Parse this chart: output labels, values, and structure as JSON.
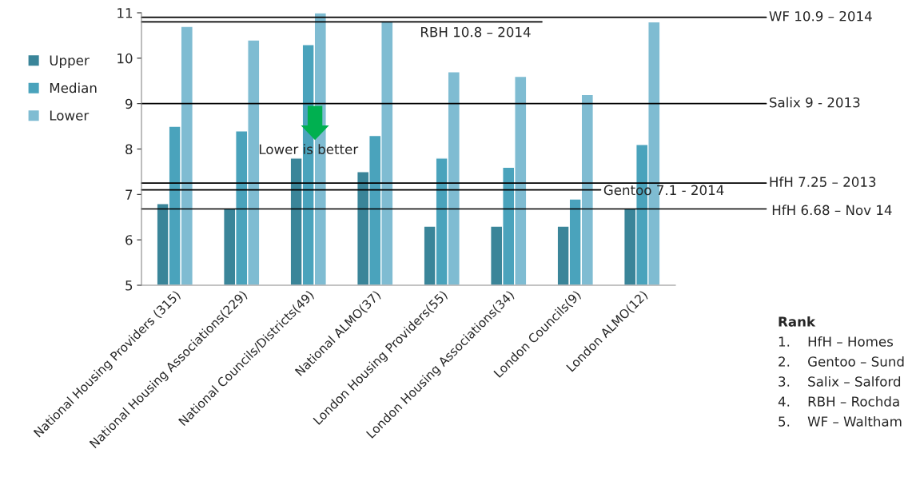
{
  "chart_data": {
    "type": "bar",
    "categories": [
      "National Housing Providers (315)",
      "National Housing Associations(229)",
      "National Councils/Districts(49)",
      "National ALMO(37)",
      "London Housing Providers(55)",
      "London Housing Associations(34)",
      "London Councils(9)",
      "London ALMO(12)"
    ],
    "series": [
      {
        "name": "Upper",
        "color": "#3a8599",
        "values": [
          6.8,
          6.7,
          7.8,
          7.5,
          6.3,
          6.3,
          6.3,
          6.7
        ]
      },
      {
        "name": "Median",
        "color": "#4aa3bc",
        "values": [
          8.5,
          8.4,
          10.3,
          8.3,
          7.8,
          7.6,
          6.9,
          8.1
        ]
      },
      {
        "name": "Lower",
        "color": "#7fbcd2",
        "values": [
          10.7,
          10.4,
          11.0,
          10.8,
          9.7,
          9.6,
          9.2,
          10.8
        ]
      }
    ],
    "ylim": [
      5,
      11
    ],
    "yticks": [
      5,
      6,
      7,
      8,
      9,
      10,
      11
    ],
    "grid": false,
    "legend": "left",
    "ref_lines": [
      {
        "axis": "y",
        "value": 10.9,
        "label": "WF 10.9 – 2014",
        "color": "#000000"
      },
      {
        "axis": "y",
        "value": 10.8,
        "label": "RBH 10.8 – 2014",
        "color": "#000000"
      },
      {
        "axis": "y",
        "value": 9,
        "label": "Salix 9 - 2013",
        "color": "#000000"
      },
      {
        "axis": "y",
        "value": 7.25,
        "label": "HfH 7.25 – 2013",
        "color": "#000000"
      },
      {
        "axis": "y",
        "value": 7.1,
        "label": "Gentoo 7.1 - 2014",
        "color": "#000000"
      },
      {
        "axis": "y",
        "value": 6.68,
        "label": "HfH 6.68 – Nov 14",
        "color": "#000000"
      }
    ],
    "annotations": [
      "Lower is better",
      "Rank",
      "1.    HfH – Homes",
      "2.    Gentoo – Sund",
      "3.    Salix – Salford",
      "4.    RBH – Rochda",
      "5.    WF – Waltham"
    ]
  }
}
